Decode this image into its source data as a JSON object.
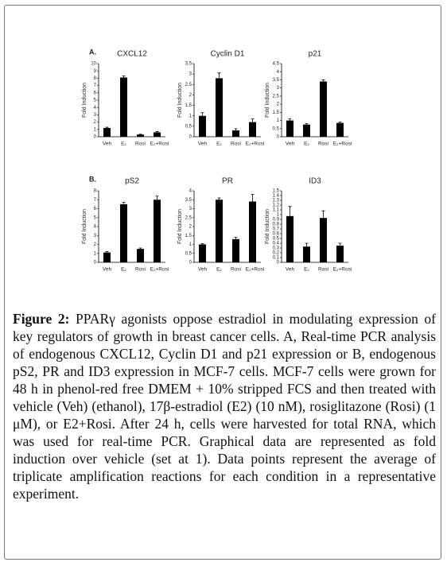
{
  "chart_data": [
    {
      "type": "bar",
      "panel": "A.",
      "title": "CXCL12",
      "ylabel": "Fold Induction",
      "categories": [
        "Veh",
        "E₂",
        "Rosi",
        "E₂+Rosi"
      ],
      "values": [
        1.2,
        8.1,
        0.3,
        0.6
      ],
      "errors": [
        0.1,
        0.2,
        0.05,
        0.1
      ],
      "color": "#000000",
      "ylim": [
        0,
        10
      ],
      "yticks": [
        0,
        1,
        2,
        3,
        4,
        5,
        6,
        7,
        8,
        9,
        10
      ]
    },
    {
      "type": "bar",
      "title": "Cyclin D1",
      "ylabel": "Fold Induction",
      "categories": [
        "Veh",
        "E₂",
        "Rosi",
        "E₂+Rosi"
      ],
      "values": [
        1.0,
        2.8,
        0.3,
        0.7
      ],
      "errors": [
        0.15,
        0.25,
        0.08,
        0.15
      ],
      "color": "#000000",
      "ylim": [
        0,
        3.5
      ],
      "yticks": [
        0,
        0.5,
        1,
        1.5,
        2,
        2.5,
        3,
        3.5
      ]
    },
    {
      "type": "bar",
      "title": "p21",
      "ylabel": "Fold Induction",
      "categories": [
        "Veh",
        "E₂",
        "Rosi",
        "E₂+Rosi"
      ],
      "values": [
        1.0,
        0.75,
        3.4,
        0.85
      ],
      "errors": [
        0.1,
        0.05,
        0.1,
        0.05
      ],
      "color": "#000000",
      "ylim": [
        0,
        4.5
      ],
      "yticks": [
        0,
        0.5,
        1,
        1.5,
        2,
        2.5,
        3,
        3.5,
        4,
        4.5
      ]
    },
    {
      "type": "bar",
      "panel": "B.",
      "title": "pS2",
      "ylabel": "Fold Induction",
      "categories": [
        "Veh",
        "E₂",
        "Rosi",
        "E₂+Rosi"
      ],
      "values": [
        1.1,
        6.5,
        1.5,
        7.0
      ],
      "errors": [
        0.1,
        0.2,
        0.1,
        0.4
      ],
      "color": "#000000",
      "ylim": [
        0,
        8
      ],
      "yticks": [
        0,
        1,
        2,
        3,
        4,
        5,
        6,
        7,
        8
      ]
    },
    {
      "type": "bar",
      "title": "PR",
      "ylabel": "Fold Induction",
      "categories": [
        "Veh",
        "E₂",
        "Rosi",
        "E₂+Rosi"
      ],
      "values": [
        1.0,
        3.5,
        1.3,
        3.4
      ],
      "errors": [
        0.05,
        0.1,
        0.1,
        0.4
      ],
      "color": "#000000",
      "ylim": [
        0,
        4
      ],
      "yticks": [
        0,
        0.5,
        1,
        1.5,
        2,
        2.5,
        3,
        3.5,
        4
      ]
    },
    {
      "type": "bar",
      "title": "ID3",
      "ylabel": "Fold Induction",
      "categories": [
        "Veh",
        "E₂",
        "Rosi",
        "E₂+Rosi"
      ],
      "values": [
        0.97,
        0.33,
        0.93,
        0.35
      ],
      "errors": [
        0.2,
        0.07,
        0.15,
        0.05
      ],
      "color": "#000000",
      "ylim": [
        0,
        1.5
      ],
      "yticks": [
        0,
        0.1,
        0.2,
        0.3,
        0.4,
        0.5,
        0.6,
        0.7,
        0.8,
        0.9,
        1,
        1.1,
        1.2,
        1.3,
        1.4,
        1.5
      ]
    }
  ],
  "caption": {
    "label": "Figure 2:",
    "text": "PPARγ agonists oppose estradiol in modulating expression of key regulators of growth in breast cancer cells. A, Real-time PCR analysis of endogenous CXCL12, Cyclin D1 and p21 expression or B, endogenous pS2, PR and ID3 expression in MCF-7 cells. MCF-7 cells were grown for 48 h in phenol-red free DMEM + 10% stripped FCS and then treated with vehicle (Veh) (ethanol), 17β-estradiol (E2) (10 nM), rosiglitazone (Rosi) (1 μM), or E2+Rosi. After 24 h, cells were harvested for total RNA, which was used for real-time PCR. Graphical data are represented as fold induction over vehicle (set at 1). Data points represent the average of triplicate amplification reactions for each condition in a representative experiment."
  }
}
